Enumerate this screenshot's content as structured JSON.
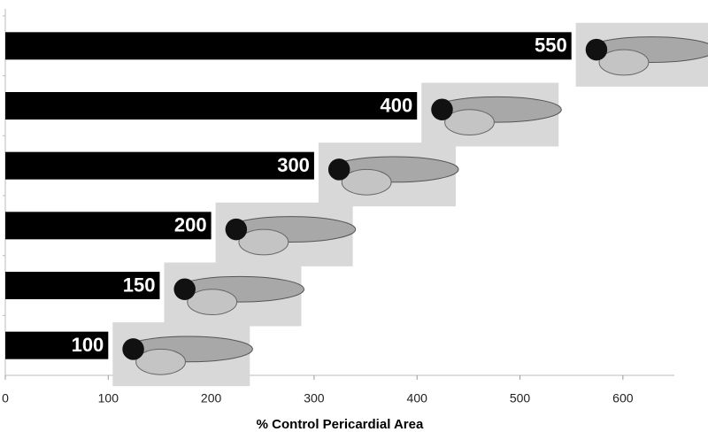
{
  "chart_data": {
    "type": "barh",
    "values": [
      550,
      400,
      300,
      200,
      150,
      100
    ],
    "color": "#000000",
    "xlabel": "% Control Pericardial Area",
    "xlim": [
      0,
      650
    ],
    "xticks": [
      0,
      100,
      200,
      300,
      400,
      500,
      600
    ],
    "grid": false
  }
}
